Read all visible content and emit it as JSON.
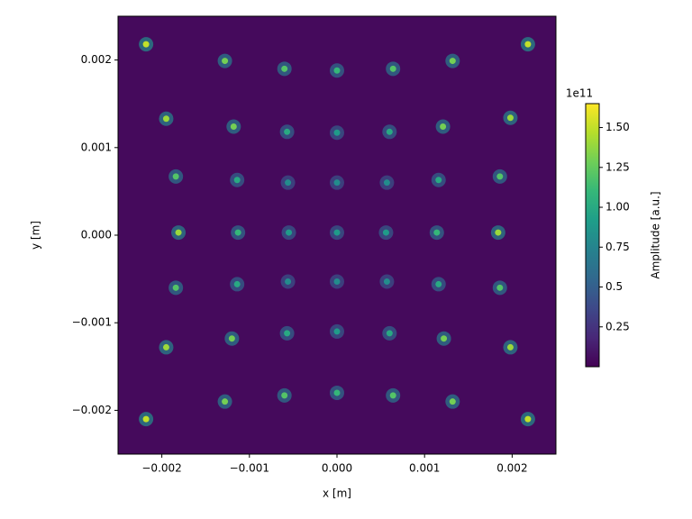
{
  "chart_data": {
    "type": "image",
    "colormap": "viridis",
    "background_value": 0.04,
    "xlabel": "x [m]",
    "ylabel": "y [m]",
    "xlim": [
      -0.0025,
      0.0025
    ],
    "ylim": [
      -0.0025,
      0.0025
    ],
    "xticks": [
      {
        "value": -0.002,
        "label": "−0.002"
      },
      {
        "value": -0.001,
        "label": "−0.001"
      },
      {
        "value": 0,
        "label": "0.000"
      },
      {
        "value": 0.001,
        "label": "0.001"
      },
      {
        "value": 0.002,
        "label": "0.002"
      }
    ],
    "yticks": [
      {
        "value": -0.002,
        "label": "−0.002"
      },
      {
        "value": -0.001,
        "label": "−0.001"
      },
      {
        "value": 0,
        "label": "0.000"
      },
      {
        "value": 0.001,
        "label": "0.001"
      },
      {
        "value": 0.002,
        "label": "0.002"
      }
    ],
    "colorbar": {
      "label": "Amplitude [a.u.]",
      "offset_label": "1e11",
      "lim": [
        0,
        1.65
      ],
      "ticks": [
        0.25,
        0.5,
        0.75,
        {
          "value": 1,
          "label": "1.00"
        },
        1.25,
        {
          "value": 1.5,
          "label": "1.50"
        }
      ]
    },
    "spots": {
      "x": [
        -0.00218,
        -0.00128,
        -0.0006,
        0,
        0.00064,
        0.00132,
        0.00218,
        -0.00195,
        -0.00118,
        -0.00057,
        0,
        0.0006,
        0.00121,
        0.00198,
        -0.00184,
        -0.00114,
        -0.00056,
        0,
        0.00057,
        0.00116,
        0.00186,
        -0.00181,
        -0.00113,
        -0.00055,
        0,
        0.00056,
        0.00114,
        0.00184,
        -0.00184,
        -0.00114,
        -0.00056,
        0,
        0.00057,
        0.00116,
        0.00186,
        -0.00195,
        -0.0012,
        -0.00057,
        0,
        0.0006,
        0.00122,
        0.00198,
        -0.00218,
        -0.00128,
        -0.0006,
        0,
        0.00064,
        0.00132,
        0.00218
      ],
      "y": [
        0.00218,
        0.00199,
        0.0019,
        0.00188,
        0.0019,
        0.00199,
        0.00218,
        0.00133,
        0.00124,
        0.00118,
        0.00117,
        0.00118,
        0.00124,
        0.00134,
        0.00067,
        0.00063,
        0.0006,
        0.0006,
        0.0006,
        0.00063,
        0.00067,
        3e-05,
        3e-05,
        3e-05,
        3e-05,
        3e-05,
        3e-05,
        3e-05,
        -0.0006,
        -0.00056,
        -0.00053,
        -0.00053,
        -0.00053,
        -0.00056,
        -0.0006,
        -0.00128,
        -0.00118,
        -0.00112,
        -0.0011,
        -0.00112,
        -0.00118,
        -0.00128,
        -0.0021,
        -0.0019,
        -0.00183,
        -0.0018,
        -0.00183,
        -0.0019,
        -0.0021
      ],
      "values": [
        1.5,
        1.3,
        1.2,
        1.1,
        1.2,
        1.3,
        1.5,
        1.4,
        1.3,
        1.0,
        0.9,
        1.0,
        1.3,
        1.4,
        1.2,
        1.0,
        0.8,
        0.8,
        0.8,
        1.0,
        1.2,
        1.4,
        1.1,
        0.9,
        0.9,
        0.9,
        1.1,
        1.4,
        1.2,
        1.0,
        0.8,
        0.8,
        0.8,
        1.0,
        1.2,
        1.4,
        1.3,
        1.0,
        0.9,
        1.0,
        1.3,
        1.4,
        1.5,
        1.3,
        1.2,
        1.1,
        1.2,
        1.3,
        1.5
      ]
    }
  }
}
